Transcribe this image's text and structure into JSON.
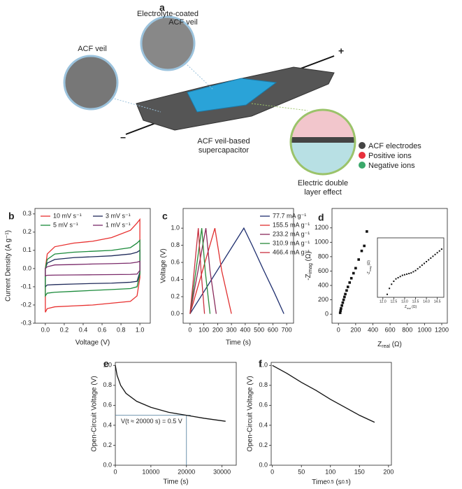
{
  "panel_a": {
    "label": "a",
    "electrolyte_label": [
      "Electrolyte-coated",
      "ACF veil"
    ],
    "veil_label": "ACF veil",
    "plus": "+",
    "minus": "−",
    "device_label": [
      "ACF veil-based",
      "supercapacitor"
    ],
    "legend": [
      "ACF electrodes",
      "Positive ions",
      "Negative ions"
    ],
    "edl_label": [
      "Electric double",
      "layer effect"
    ]
  },
  "chart_data": [
    {
      "type": "line",
      "label": "b",
      "xlabel": "Voltage (V)",
      "ylabel": "Current Density (A g⁻¹)",
      "xlim": [
        -0.11,
        1.11
      ],
      "ylim": [
        -0.3,
        0.33
      ],
      "xticks": [
        {
          "value": 0,
          "label": "0.0"
        },
        0.2,
        0.4,
        0.6,
        0.8,
        {
          "value": 1,
          "label": "1.0"
        }
      ],
      "yticks": [
        -0.3,
        -0.2,
        -0.1,
        {
          "value": 0,
          "label": "0.0"
        },
        0.1,
        0.2,
        0.3
      ],
      "legend": "upper left",
      "series": [
        {
          "name": "10 mV s⁻¹",
          "color": "#e8302f",
          "x": [
            0,
            0.02,
            0.1,
            0.3,
            0.5,
            0.7,
            0.9,
            0.97,
            1.0,
            1.0,
            0.97,
            0.9,
            0.7,
            0.5,
            0.3,
            0.1,
            0.02,
            0,
            0
          ],
          "values": [
            0.0,
            0.08,
            0.12,
            0.14,
            0.15,
            0.17,
            0.21,
            0.25,
            0.27,
            -0.05,
            -0.15,
            -0.18,
            -0.19,
            -0.2,
            -0.205,
            -0.21,
            -0.22,
            -0.24,
            0.0
          ]
        },
        {
          "name": "3 mV s⁻¹",
          "color": "#1f2a5a",
          "x": [
            0,
            0.02,
            0.1,
            0.3,
            0.5,
            0.7,
            0.9,
            0.97,
            1.0,
            1.0,
            0.97,
            0.9,
            0.7,
            0.5,
            0.3,
            0.1,
            0.02,
            0,
            0
          ],
          "values": [
            0.0,
            0.03,
            0.05,
            0.06,
            0.065,
            0.07,
            0.08,
            0.09,
            0.1,
            -0.02,
            -0.07,
            -0.075,
            -0.08,
            -0.082,
            -0.085,
            -0.088,
            -0.09,
            -0.1,
            0.0
          ]
        },
        {
          "name": "5 mV s⁻¹",
          "color": "#1a8a3a",
          "x": [
            0,
            0.02,
            0.1,
            0.3,
            0.5,
            0.7,
            0.9,
            0.97,
            1.0,
            1.0,
            0.97,
            0.9,
            0.7,
            0.5,
            0.3,
            0.1,
            0.02,
            0,
            0
          ],
          "values": [
            0.0,
            0.05,
            0.08,
            0.09,
            0.095,
            0.1,
            0.115,
            0.14,
            0.155,
            -0.03,
            -0.1,
            -0.11,
            -0.115,
            -0.12,
            -0.125,
            -0.13,
            -0.135,
            -0.15,
            0.0
          ]
        },
        {
          "name": "1 mV s⁻¹",
          "color": "#7a2a6a",
          "x": [
            0,
            0.02,
            0.1,
            0.3,
            0.5,
            0.7,
            0.9,
            0.97,
            1.0,
            1.0,
            0.97,
            0.9,
            0.7,
            0.5,
            0.3,
            0.1,
            0.02,
            0,
            0
          ],
          "values": [
            0.0,
            0.01,
            0.02,
            0.022,
            0.025,
            0.027,
            0.03,
            0.035,
            0.04,
            -0.01,
            -0.03,
            -0.032,
            -0.033,
            -0.034,
            -0.035,
            -0.036,
            -0.037,
            -0.04,
            0.0
          ]
        }
      ]
    },
    {
      "type": "line",
      "label": "c",
      "xlabel": "Time (s)",
      "ylabel": "Voltage (V)",
      "xlim": [
        -50,
        750
      ],
      "ylim": [
        -0.11,
        1.23
      ],
      "xticks": [
        0,
        100,
        200,
        300,
        400,
        500,
        600,
        700
      ],
      "yticks": [
        {
          "value": 0,
          "label": "0.0"
        },
        0.2,
        0.4,
        0.6,
        0.8,
        {
          "value": 1,
          "label": "1.0"
        }
      ],
      "legend": "upper right",
      "series": [
        {
          "name": "77.7 mA g⁻¹",
          "color": "#1f2f6f",
          "x": [
            0,
            390,
            450,
            530,
            610,
            680
          ],
          "values": [
            0,
            1.0,
            0.8,
            0.52,
            0.25,
            0
          ]
        },
        {
          "name": "155.5 mA g⁻¹",
          "color": "#e03030",
          "x": [
            0,
            180,
            230,
            300
          ],
          "values": [
            0,
            1.0,
            0.5,
            0
          ]
        },
        {
          "name": "233.2 mA g⁻¹",
          "color": "#8a2a5a",
          "x": [
            0,
            115,
            145,
            190
          ],
          "values": [
            0,
            1.0,
            0.5,
            0
          ]
        },
        {
          "name": "310.9 mA g⁻¹",
          "color": "#2a8a3a",
          "x": [
            0,
            85,
            110,
            145
          ],
          "values": [
            0,
            1.0,
            0.5,
            0
          ]
        },
        {
          "name": "466.4 mA g⁻¹",
          "color": "#c83040",
          "x": [
            0,
            60,
            80,
            105
          ],
          "values": [
            0,
            1.0,
            0.5,
            0
          ]
        }
      ]
    },
    {
      "type": "scatter",
      "label": "d",
      "xlabel": [
        "Z",
        "real",
        " (Ω)"
      ],
      "ylabel": [
        "-Z",
        "imag",
        " (Ω)"
      ],
      "label_script": "sub",
      "xlim": [
        -75,
        1265
      ],
      "ylim": [
        -125,
        1470
      ],
      "xticks": [
        0,
        200,
        400,
        600,
        800,
        1000,
        1200
      ],
      "yticks": [
        0,
        200,
        400,
        600,
        800,
        1000,
        1200
      ],
      "series": [
        {
          "color": "#111",
          "x": [
            20,
            25,
            30,
            40,
            50,
            60,
            70,
            80,
            95,
            110,
            130,
            150,
            175,
            200,
            235,
            270,
            300,
            330
          ],
          "values": [
            20,
            50,
            80,
            120,
            160,
            200,
            240,
            280,
            330,
            380,
            440,
            500,
            570,
            640,
            760,
            880,
            950,
            1150
          ]
        }
      ]
    },
    {
      "type": "scatter",
      "xlabel": [
        "Z",
        "real",
        " (Ω)"
      ],
      "ylabel": [
        "-Z",
        "imag",
        " (Ω)"
      ],
      "label_script": "sub",
      "xlim": [
        11.75,
        14.8
      ],
      "ylim": [
        0,
        1
      ],
      "xticks": [
        {
          "value": 12,
          "label": "12.0"
        },
        12.5,
        {
          "value": 13,
          "label": "13.0"
        },
        13.5,
        {
          "value": 14,
          "label": "14.0"
        },
        14.5
      ],
      "series": [
        {
          "color": "#111",
          "x": [
            12.2,
            12.3,
            12.4,
            12.5,
            12.6,
            12.7,
            12.8,
            12.9,
            13.0,
            13.1,
            13.2,
            13.3,
            13.4,
            13.5,
            13.6,
            13.7,
            13.8,
            13.9,
            14.0,
            14.1,
            14.2,
            14.3,
            14.4,
            14.5,
            14.6,
            14.7
          ],
          "values": [
            0.05,
            0.15,
            0.22,
            0.27,
            0.31,
            0.33,
            0.35,
            0.37,
            0.38,
            0.39,
            0.4,
            0.41,
            0.43,
            0.45,
            0.48,
            0.51,
            0.54,
            0.57,
            0.6,
            0.63,
            0.66,
            0.69,
            0.72,
            0.75,
            0.78,
            0.81
          ]
        }
      ]
    },
    {
      "type": "line",
      "label": "e",
      "xlabel": "Time (s)",
      "ylabel": "Open-Circuit Voltage (V)",
      "xlim": [
        0,
        34000
      ],
      "ylim": [
        0,
        1.03
      ],
      "xticks": [
        0,
        10000,
        20000,
        30000
      ],
      "yticks": [
        {
          "value": 0,
          "label": "0.0"
        },
        0.2,
        0.4,
        0.6,
        0.8,
        {
          "value": 1,
          "label": "1.0"
        }
      ],
      "annotation": {
        "text": "V(t ≈ 20000 s) = 0.5 V",
        "x": 20000,
        "y": 0.5,
        "color": "#4a7a9a"
      },
      "series": [
        {
          "color": "#111",
          "x": [
            0,
            500,
            1500,
            3000,
            6000,
            10000,
            15000,
            20000,
            25000,
            31000
          ],
          "values": [
            1.0,
            0.9,
            0.8,
            0.72,
            0.64,
            0.58,
            0.53,
            0.5,
            0.47,
            0.44
          ]
        }
      ]
    },
    {
      "type": "line",
      "label": "f",
      "xlabel": [
        "Time",
        "0.5",
        " (s",
        "0.5",
        ")"
      ],
      "label_script": "sup",
      "ylabel": "Open-Circuit Voltage (V)",
      "xlim": [
        -2,
        205
      ],
      "ylim": [
        0,
        1.03
      ],
      "xticks": [
        0,
        50,
        100,
        150,
        200
      ],
      "yticks": [
        {
          "value": 0,
          "label": "0.0"
        },
        0.2,
        0.4,
        0.6,
        0.8,
        {
          "value": 1,
          "label": "1.0"
        }
      ],
      "series": [
        {
          "color": "#111",
          "x": [
            0,
            25,
            50,
            75,
            100,
            125,
            150,
            176
          ],
          "values": [
            1.0,
            0.92,
            0.83,
            0.75,
            0.66,
            0.58,
            0.5,
            0.43
          ]
        }
      ]
    }
  ]
}
